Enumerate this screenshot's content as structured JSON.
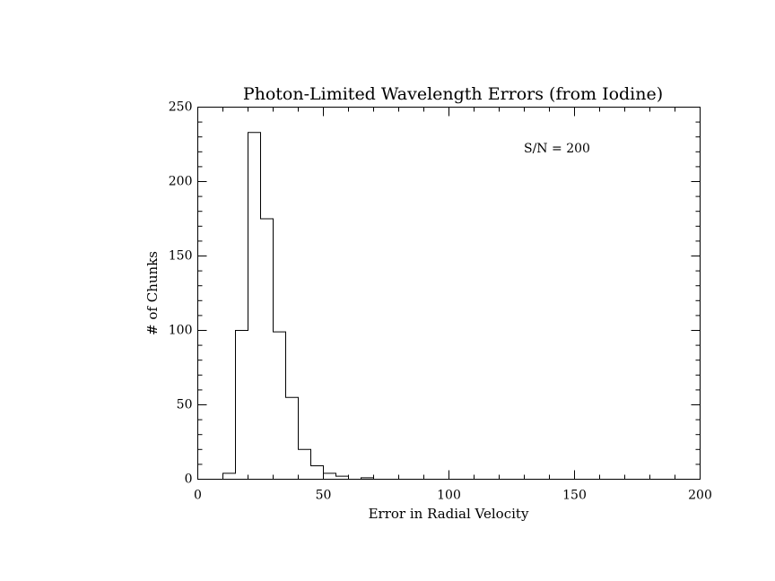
{
  "chart_data": {
    "type": "bar",
    "title": "Photon-Limited Wavelength Errors (from Iodine)",
    "xlabel": "Error in Radial Velocity",
    "ylabel": "# of Chunks",
    "annotation": "S/N = 200",
    "xlim": [
      0,
      200
    ],
    "ylim": [
      0,
      250
    ],
    "x_ticks": [
      0,
      50,
      100,
      150,
      200
    ],
    "x_tick_labels": [
      "0",
      "50",
      "100",
      "150",
      "200"
    ],
    "y_ticks": [
      0,
      50,
      100,
      150,
      200,
      250
    ],
    "y_tick_labels": [
      "0",
      "50",
      "100",
      "150",
      "200",
      "250"
    ],
    "grid": false,
    "bin_width": 5,
    "bins": [
      {
        "start": 10,
        "count": 4
      },
      {
        "start": 15,
        "count": 100
      },
      {
        "start": 20,
        "count": 233
      },
      {
        "start": 25,
        "count": 175
      },
      {
        "start": 30,
        "count": 99
      },
      {
        "start": 35,
        "count": 55
      },
      {
        "start": 40,
        "count": 20
      },
      {
        "start": 45,
        "count": 9
      },
      {
        "start": 50,
        "count": 4
      },
      {
        "start": 55,
        "count": 2
      },
      {
        "start": 60,
        "count": 0
      },
      {
        "start": 65,
        "count": 1
      },
      {
        "start": 70,
        "count": 0
      }
    ]
  }
}
